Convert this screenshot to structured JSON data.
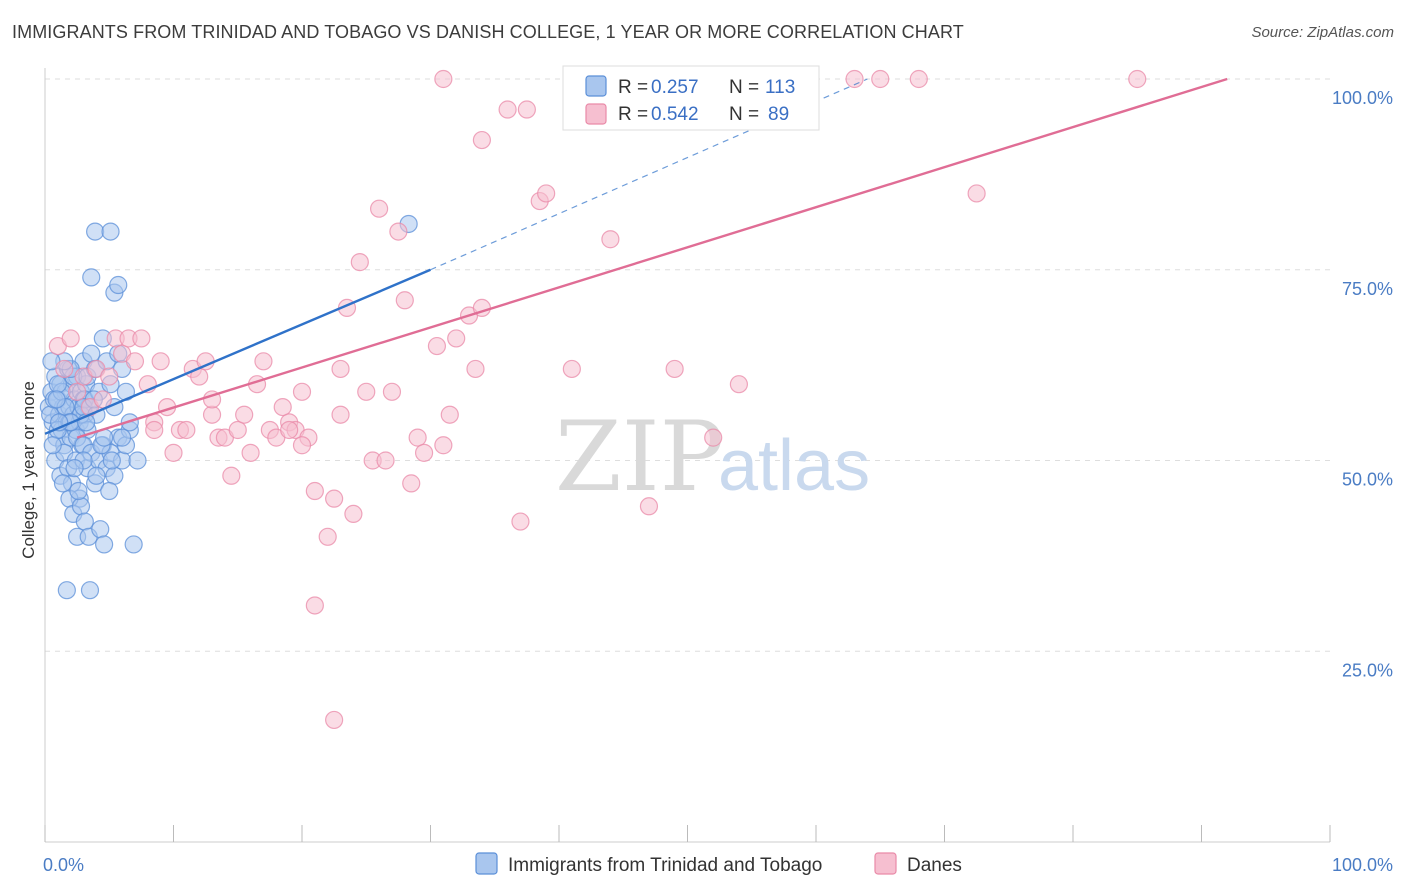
{
  "header": {
    "title": "IMMIGRANTS FROM TRINIDAD AND TOBAGO VS DANISH COLLEGE, 1 YEAR OR MORE CORRELATION CHART",
    "source": "Source: ZipAtlas.com"
  },
  "watermark": {
    "zip": "ZIP",
    "atlas": "atlas"
  },
  "colors": {
    "blue": "#5b8fd8",
    "blue_fill": "#a9c6ee",
    "blue_line": "#2f72c9",
    "pink": "#e98aa8",
    "pink_fill": "#f6bfd0",
    "pink_line": "#e06d95",
    "tick_text": "#4a7cc4",
    "grid": "#dedede"
  },
  "chart_data": {
    "type": "scatter",
    "title": "IMMIGRANTS FROM TRINIDAD AND TOBAGO VS DANISH COLLEGE, 1 YEAR OR MORE CORRELATION CHART",
    "xlabel": "",
    "ylabel": "College, 1 year or more",
    "xlim": [
      0,
      100
    ],
    "ylim": [
      0,
      100
    ],
    "x_tick_labels": [
      {
        "value": 0,
        "label": "0.0%"
      },
      {
        "value": 100,
        "label": "100.0%"
      }
    ],
    "y_tick_labels": [
      {
        "value": 100,
        "label": "100.0%"
      },
      {
        "value": 75,
        "label": "75.0%"
      },
      {
        "value": 50,
        "label": "50.0%"
      },
      {
        "value": 25,
        "label": "25.0%"
      }
    ],
    "legend": [
      {
        "series": "Immigrants from Trinidad and Tobago",
        "r_label": "R =",
        "r": "0.257",
        "n_label": "N =",
        "n": "113"
      },
      {
        "series": "Danes",
        "r_label": "R =",
        "r": "0.542",
        "n_label": "N =",
        "n": "89"
      }
    ],
    "series": [
      {
        "name": "Immigrants from Trinidad and Tobago",
        "color": "blue",
        "trend": {
          "x0": 0,
          "y0": 53.5,
          "x1": 30,
          "y1": 75,
          "dash_x1": 64,
          "dash_y1": 100
        },
        "points": [
          [
            0.3,
            57
          ],
          [
            0.5,
            59
          ],
          [
            0.6,
            55
          ],
          [
            0.8,
            61
          ],
          [
            0.9,
            53
          ],
          [
            1.0,
            58
          ],
          [
            1.1,
            56
          ],
          [
            1.2,
            60
          ],
          [
            1.3,
            54
          ],
          [
            1.4,
            57
          ],
          [
            1.5,
            52
          ],
          [
            1.6,
            59
          ],
          [
            1.7,
            55
          ],
          [
            1.8,
            62
          ],
          [
            1.9,
            57
          ],
          [
            2.0,
            53
          ],
          [
            2.1,
            60
          ],
          [
            2.2,
            56
          ],
          [
            2.3,
            58
          ],
          [
            2.4,
            54
          ],
          [
            2.5,
            61
          ],
          [
            2.6,
            57
          ],
          [
            2.7,
            55
          ],
          [
            2.8,
            59
          ],
          [
            2.9,
            52
          ],
          [
            3.0,
            58
          ],
          [
            3.1,
            56
          ],
          [
            3.2,
            60
          ],
          [
            3.3,
            54
          ],
          [
            3.4,
            57
          ],
          [
            0.4,
            56
          ],
          [
            0.7,
            58
          ],
          [
            1.0,
            54
          ],
          [
            1.3,
            59
          ],
          [
            1.6,
            57
          ],
          [
            1.9,
            55
          ],
          [
            2.2,
            61
          ],
          [
            2.5,
            53
          ],
          [
            2.8,
            56
          ],
          [
            3.1,
            58
          ],
          [
            0.8,
            50
          ],
          [
            1.2,
            48
          ],
          [
            1.5,
            51
          ],
          [
            1.8,
            49
          ],
          [
            2.1,
            47
          ],
          [
            2.4,
            50
          ],
          [
            2.7,
            45
          ],
          [
            3.0,
            52
          ],
          [
            3.3,
            49
          ],
          [
            3.6,
            51
          ],
          [
            3.9,
            47
          ],
          [
            4.2,
            50
          ],
          [
            4.5,
            52
          ],
          [
            4.8,
            49
          ],
          [
            5.1,
            51
          ],
          [
            5.4,
            48
          ],
          [
            5.7,
            53
          ],
          [
            6.0,
            50
          ],
          [
            6.3,
            52
          ],
          [
            6.6,
            54
          ],
          [
            1.9,
            45
          ],
          [
            2.2,
            43
          ],
          [
            2.5,
            40
          ],
          [
            2.8,
            44
          ],
          [
            3.1,
            42
          ],
          [
            3.4,
            40
          ],
          [
            4.3,
            41
          ],
          [
            4.6,
            39
          ],
          [
            6.9,
            39
          ],
          [
            1.7,
            33
          ],
          [
            3.5,
            33
          ],
          [
            3.0,
            63
          ],
          [
            3.3,
            61
          ],
          [
            3.6,
            64
          ],
          [
            3.9,
            62
          ],
          [
            4.2,
            59
          ],
          [
            4.5,
            66
          ],
          [
            4.8,
            63
          ],
          [
            5.1,
            60
          ],
          [
            5.4,
            57
          ],
          [
            5.7,
            64
          ],
          [
            6.0,
            62
          ],
          [
            6.3,
            59
          ],
          [
            6.6,
            55
          ],
          [
            3.6,
            74
          ],
          [
            5.4,
            72
          ],
          [
            5.7,
            73
          ],
          [
            3.9,
            80
          ],
          [
            5.1,
            80
          ],
          [
            28.3,
            81
          ],
          [
            7.2,
            50
          ],
          [
            3.0,
            50
          ],
          [
            4.0,
            48
          ],
          [
            5.0,
            46
          ],
          [
            6.0,
            53
          ],
          [
            1.0,
            60
          ],
          [
            2.0,
            62
          ],
          [
            3.0,
            57
          ],
          [
            4.0,
            56
          ],
          [
            1.5,
            63
          ],
          [
            2.3,
            49
          ],
          [
            0.6,
            52
          ],
          [
            1.4,
            47
          ],
          [
            2.6,
            46
          ],
          [
            3.8,
            58
          ],
          [
            4.4,
            52
          ],
          [
            0.9,
            58
          ],
          [
            2.0,
            55
          ],
          [
            3.2,
            55
          ],
          [
            4.6,
            53
          ],
          [
            5.2,
            50
          ],
          [
            0.5,
            63
          ],
          [
            1.1,
            55
          ]
        ]
      },
      {
        "name": "Danes",
        "color": "pink",
        "trend": {
          "x0": 2.5,
          "y0": 53,
          "x1": 92,
          "y1": 100
        },
        "points": [
          [
            1.0,
            65
          ],
          [
            1.5,
            62
          ],
          [
            2.0,
            66
          ],
          [
            2.5,
            59
          ],
          [
            3.0,
            61
          ],
          [
            3.5,
            57
          ],
          [
            4.0,
            62
          ],
          [
            4.5,
            58
          ],
          [
            5.0,
            61
          ],
          [
            5.5,
            66
          ],
          [
            6.0,
            64
          ],
          [
            6.5,
            66
          ],
          [
            7.0,
            63
          ],
          [
            7.5,
            66
          ],
          [
            8.0,
            60
          ],
          [
            8.5,
            55
          ],
          [
            9.0,
            63
          ],
          [
            9.5,
            57
          ],
          [
            10.0,
            51
          ],
          [
            10.5,
            54
          ],
          [
            11.0,
            54
          ],
          [
            11.5,
            62
          ],
          [
            12.0,
            61
          ],
          [
            12.5,
            63
          ],
          [
            13.0,
            56
          ],
          [
            13.5,
            53
          ],
          [
            14.0,
            53
          ],
          [
            14.5,
            48
          ],
          [
            15.0,
            54
          ],
          [
            15.5,
            56
          ],
          [
            16.0,
            51
          ],
          [
            16.5,
            60
          ],
          [
            17.0,
            63
          ],
          [
            17.5,
            54
          ],
          [
            18.0,
            53
          ],
          [
            18.5,
            57
          ],
          [
            19.0,
            55
          ],
          [
            19.5,
            54
          ],
          [
            20.0,
            59
          ],
          [
            20.5,
            53
          ],
          [
            21.0,
            46
          ],
          [
            22.0,
            40
          ],
          [
            22.5,
            45
          ],
          [
            23.0,
            62
          ],
          [
            23.5,
            70
          ],
          [
            24.0,
            43
          ],
          [
            24.5,
            76
          ],
          [
            25.0,
            59
          ],
          [
            25.5,
            50
          ],
          [
            26.0,
            83
          ],
          [
            26.5,
            50
          ],
          [
            27.0,
            59
          ],
          [
            27.5,
            80
          ],
          [
            28.0,
            71
          ],
          [
            28.5,
            47
          ],
          [
            29.0,
            53
          ],
          [
            29.5,
            51
          ],
          [
            30.5,
            65
          ],
          [
            31.0,
            52
          ],
          [
            31.5,
            56
          ],
          [
            32.0,
            66
          ],
          [
            33.0,
            69
          ],
          [
            33.5,
            62
          ],
          [
            34.0,
            70
          ],
          [
            36.0,
            96
          ],
          [
            37.0,
            42
          ],
          [
            37.5,
            96
          ],
          [
            38.5,
            84
          ],
          [
            39.0,
            85
          ],
          [
            41.0,
            62
          ],
          [
            44.0,
            79
          ],
          [
            47.0,
            44
          ],
          [
            49.0,
            62
          ],
          [
            52.0,
            53
          ],
          [
            54.0,
            60
          ],
          [
            21.0,
            31
          ],
          [
            22.5,
            16
          ],
          [
            31.0,
            100
          ],
          [
            34.0,
            92
          ],
          [
            63.0,
            100
          ],
          [
            65.0,
            100
          ],
          [
            68.0,
            100
          ],
          [
            72.5,
            85
          ],
          [
            85.0,
            100
          ],
          [
            19.0,
            54
          ],
          [
            8.5,
            54
          ],
          [
            13.0,
            58
          ],
          [
            20.0,
            52
          ],
          [
            23.0,
            56
          ]
        ]
      }
    ]
  }
}
